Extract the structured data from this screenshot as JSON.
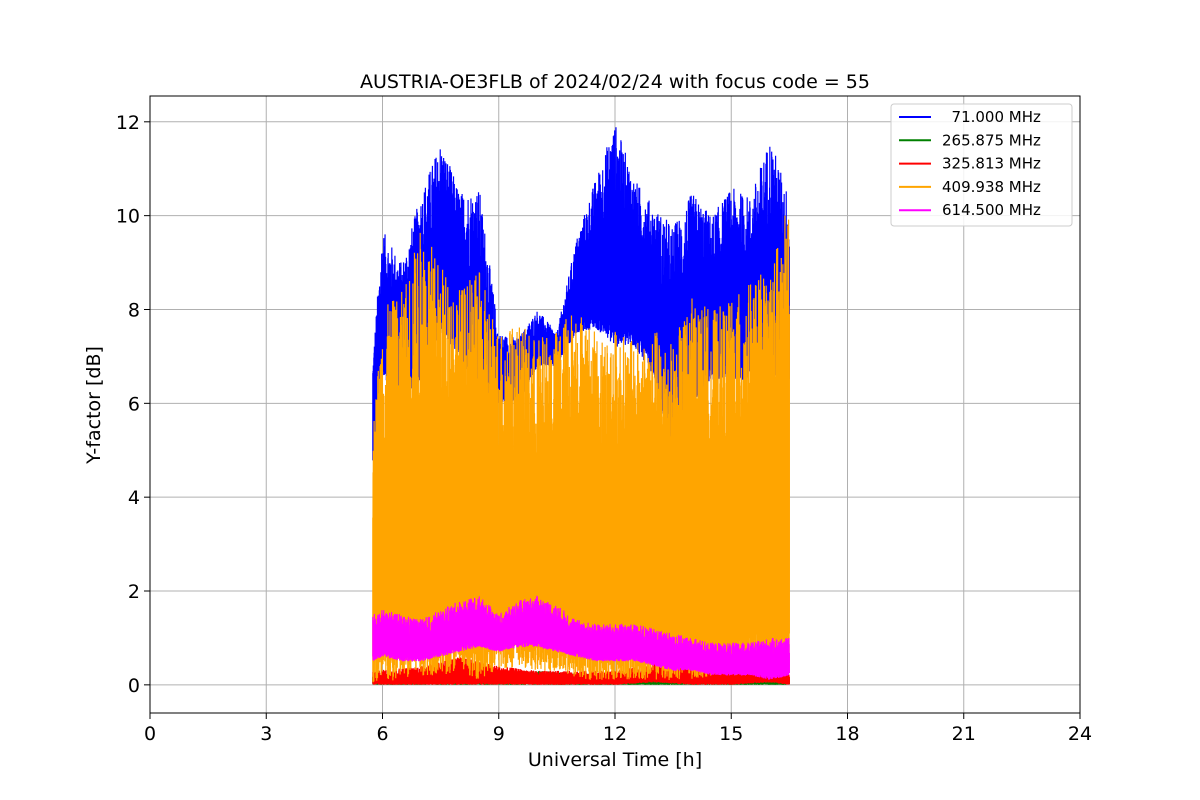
{
  "chart_data": {
    "type": "line",
    "title": "AUSTRIA-OE3FLB of 2024/02/24 with focus code = 55",
    "xlabel": "Universal Time [h]",
    "ylabel": "Y-factor [dB]",
    "xlim": [
      0,
      24
    ],
    "ylim": [
      -0.6,
      12.55
    ],
    "xticks": [
      0,
      3,
      6,
      9,
      12,
      15,
      18,
      21,
      24
    ],
    "yticks": [
      0,
      2,
      4,
      6,
      8,
      10,
      12
    ],
    "xtick_labels": [
      "0",
      "3",
      "6",
      "9",
      "12",
      "15",
      "18",
      "21",
      "24"
    ],
    "ytick_labels": [
      "0",
      "2",
      "4",
      "6",
      "8",
      "10",
      "12"
    ],
    "grid": true,
    "legend_position": "top-right",
    "time_range_h": [
      5.75,
      16.5
    ],
    "series": [
      {
        "name": "  71.000 MHz",
        "color": "#0000ff",
        "x": [
          5.75,
          6.0,
          6.5,
          7.0,
          7.5,
          8.0,
          8.5,
          9.0,
          9.5,
          10.0,
          10.5,
          11.0,
          11.5,
          12.0,
          12.5,
          13.0,
          13.5,
          14.0,
          14.5,
          15.0,
          15.5,
          16.0,
          16.5
        ],
        "upper": [
          7.0,
          9.7,
          9.0,
          10.5,
          11.6,
          10.5,
          10.6,
          7.5,
          7.4,
          8.0,
          7.5,
          9.5,
          10.8,
          12.0,
          10.8,
          10.2,
          9.8,
          10.5,
          10.0,
          10.6,
          10.4,
          11.7,
          10.4
        ],
        "lower": [
          4.7,
          6.5,
          6.0,
          6.5,
          7.5,
          7.0,
          6.0,
          6.0,
          6.0,
          6.8,
          6.8,
          7.5,
          7.6,
          7.2,
          7.2,
          6.6,
          4.6,
          6.0,
          6.5,
          6.5,
          6.5,
          6.5,
          6.5
        ]
      },
      {
        "name": "265.875 MHz",
        "color": "#008000",
        "x": [
          5.75,
          7.0,
          8.0,
          9.0,
          10.0,
          11.0,
          12.0,
          13.0,
          14.0,
          15.0,
          16.0,
          16.5
        ],
        "upper": [
          0.2,
          0.2,
          0.25,
          0.3,
          0.3,
          0.25,
          0.2,
          0.2,
          0.2,
          0.2,
          0.2,
          0.2
        ],
        "lower": [
          0.0,
          0.0,
          0.0,
          0.0,
          0.0,
          0.0,
          0.0,
          0.0,
          0.0,
          0.0,
          0.0,
          0.0
        ]
      },
      {
        "name": "325.813 MHz",
        "color": "#ff0000",
        "x": [
          5.75,
          7.0,
          8.0,
          9.0,
          10.0,
          11.0,
          12.0,
          13.0,
          14.0,
          15.0,
          16.0,
          16.5
        ],
        "upper": [
          0.3,
          0.4,
          0.6,
          0.4,
          0.3,
          0.3,
          0.3,
          0.45,
          0.4,
          0.35,
          0.4,
          0.3
        ],
        "lower": [
          0.0,
          0.0,
          0.0,
          0.0,
          0.0,
          0.0,
          0.0,
          0.05,
          0.0,
          0.0,
          0.05,
          0.0
        ]
      },
      {
        "name": "409.938 MHz",
        "color": "#ffa500",
        "x": [
          5.75,
          6.0,
          6.5,
          7.0,
          7.5,
          8.0,
          8.5,
          9.0,
          9.5,
          10.0,
          10.5,
          11.0,
          11.5,
          12.0,
          12.5,
          13.0,
          13.5,
          14.0,
          14.5,
          15.0,
          15.5,
          16.0,
          16.5
        ],
        "upper": [
          5.5,
          8.0,
          8.4,
          9.8,
          9.0,
          8.5,
          8.8,
          7.6,
          7.7,
          7.4,
          7.6,
          8.2,
          7.5,
          7.6,
          7.3,
          7.6,
          7.3,
          8.3,
          8.0,
          8.2,
          8.6,
          8.9,
          10.4
        ],
        "lower": [
          0.0,
          0.0,
          0.1,
          0.2,
          0.2,
          0.3,
          0.1,
          0.3,
          0.4,
          0.3,
          0.3,
          0.1,
          0.1,
          0.1,
          0.1,
          0.1,
          0.1,
          0.1,
          0.2,
          0.2,
          0.2,
          0.3,
          0.3
        ]
      },
      {
        "name": "614.500 MHz",
        "color": "#ff00ff",
        "x": [
          5.75,
          6.0,
          6.5,
          7.0,
          7.5,
          8.0,
          8.5,
          9.0,
          9.5,
          10.0,
          10.5,
          11.0,
          11.5,
          12.0,
          12.5,
          13.0,
          13.5,
          14.0,
          14.5,
          15.0,
          15.5,
          16.0,
          16.5
        ],
        "upper": [
          1.5,
          1.6,
          1.5,
          1.4,
          1.6,
          1.8,
          1.9,
          1.5,
          1.8,
          1.9,
          1.7,
          1.4,
          1.3,
          1.3,
          1.3,
          1.2,
          1.1,
          1.0,
          0.9,
          0.9,
          0.9,
          1.0,
          1.0
        ],
        "lower": [
          0.5,
          0.6,
          0.5,
          0.5,
          0.6,
          0.7,
          0.8,
          0.7,
          0.8,
          0.8,
          0.7,
          0.6,
          0.5,
          0.5,
          0.5,
          0.4,
          0.3,
          0.3,
          0.2,
          0.2,
          0.2,
          0.1,
          0.2
        ]
      }
    ]
  }
}
